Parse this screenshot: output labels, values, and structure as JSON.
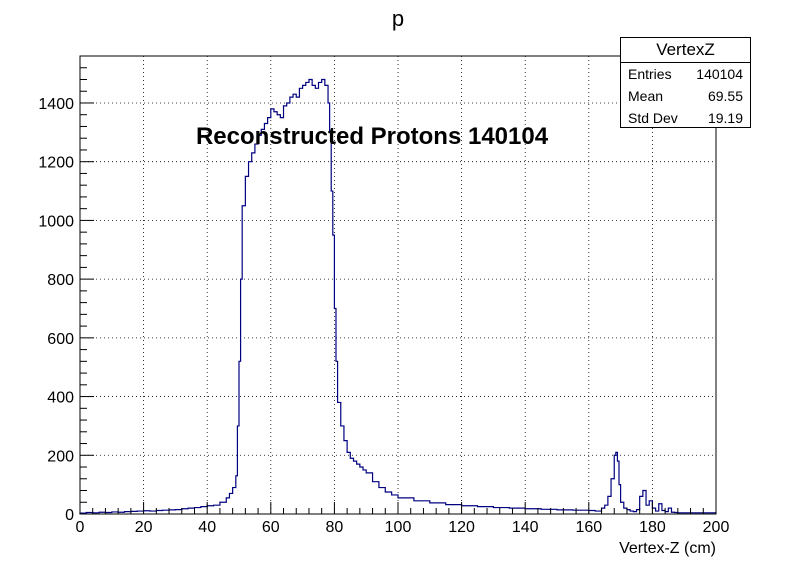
{
  "chart_data": {
    "type": "histogram",
    "title": "p",
    "xlabel": "Vertex-Z (cm)",
    "ylabel": "",
    "xlim": [
      0,
      200
    ],
    "ylim": [
      0,
      1560
    ],
    "xticks": [
      "0",
      "20",
      "40",
      "60",
      "80",
      "100",
      "120",
      "140",
      "160",
      "180",
      "200"
    ],
    "yticks": [
      "0",
      "200",
      "400",
      "600",
      "800",
      "1000",
      "1200",
      "1400"
    ],
    "grid": true,
    "line_color": "#000080",
    "annotation": "Reconstructed Protons 140104",
    "stats": {
      "name": "VertexZ",
      "rows": [
        {
          "label": "Entries",
          "value": "140104"
        },
        {
          "label": "Mean",
          "value": "69.55"
        },
        {
          "label": "Std Dev",
          "value": "19.19"
        }
      ]
    },
    "series": [
      {
        "x": [
          0,
          2,
          4,
          6,
          8,
          10,
          12,
          14,
          16,
          18,
          20,
          22,
          24,
          26,
          28,
          30,
          32,
          34,
          36,
          38,
          40,
          42,
          44,
          46,
          47,
          48,
          49,
          49.5,
          50,
          50.5,
          51,
          52,
          53,
          54,
          55,
          56,
          57,
          58,
          59,
          60,
          61,
          62,
          63,
          64,
          65,
          66,
          67,
          68,
          69,
          70,
          71,
          72,
          73,
          74,
          75,
          76,
          77,
          78,
          78.5,
          79,
          79.5,
          80,
          80.5,
          81,
          82,
          83,
          84,
          85,
          86,
          87,
          88,
          89,
          90,
          92,
          94,
          96,
          98,
          100,
          105,
          110,
          115,
          120,
          125,
          130,
          135,
          140,
          145,
          150,
          155,
          160,
          162,
          164,
          165,
          166,
          167,
          168,
          168.5,
          169,
          169.5,
          170,
          171,
          172,
          173,
          174,
          175,
          176,
          177,
          178,
          179,
          180,
          181,
          182,
          183,
          184,
          185,
          186,
          187,
          188,
          200
        ],
        "y": [
          3,
          5,
          4,
          6,
          5,
          7,
          6,
          8,
          9,
          10,
          11,
          10,
          12,
          13,
          14,
          15,
          18,
          20,
          22,
          25,
          28,
          30,
          40,
          55,
          70,
          90,
          130,
          300,
          520,
          800,
          1050,
          1150,
          1200,
          1230,
          1260,
          1290,
          1310,
          1330,
          1350,
          1380,
          1370,
          1360,
          1350,
          1390,
          1400,
          1420,
          1430,
          1420,
          1450,
          1460,
          1470,
          1480,
          1460,
          1450,
          1470,
          1480,
          1460,
          1400,
          1300,
          1100,
          950,
          700,
          520,
          380,
          300,
          250,
          210,
          190,
          180,
          170,
          160,
          150,
          140,
          110,
          90,
          75,
          65,
          55,
          45,
          38,
          32,
          28,
          25,
          22,
          20,
          18,
          16,
          14,
          13,
          12,
          10,
          20,
          30,
          60,
          120,
          200,
          210,
          180,
          100,
          40,
          20,
          15,
          10,
          8,
          15,
          60,
          80,
          30,
          45,
          20,
          10,
          35,
          12,
          8,
          20,
          6,
          5,
          4,
          2
        ]
      }
    ]
  }
}
